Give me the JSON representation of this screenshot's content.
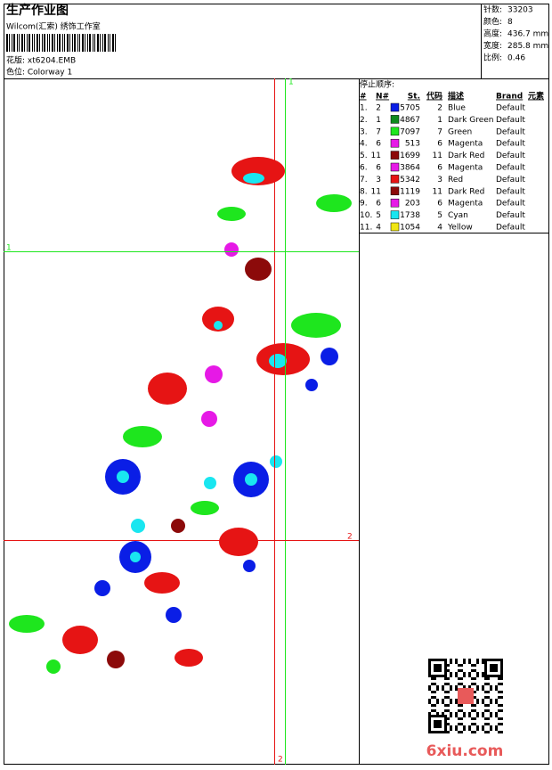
{
  "header": {
    "title": "生产作业图",
    "subtitle": "Wilcom(汇索) 绣饰工作室",
    "design": "花版: xt6204.EMB",
    "colorway": "色位: Colorway 1"
  },
  "info": [
    {
      "label": "针数:",
      "value": "33203"
    },
    {
      "label": "颜色:",
      "value": "8"
    },
    {
      "label": "高度:",
      "value": "436.7 mm"
    },
    {
      "label": "宽度:",
      "value": "285.8 mm"
    },
    {
      "label": "比例:",
      "value": "0.46"
    }
  ],
  "guides": {
    "v1": "1",
    "v2": "2",
    "h1": "1",
    "h2": "2"
  },
  "table": {
    "title": "停止顺序:",
    "columns": [
      "#",
      "N#",
      "St.",
      "代码",
      "描述",
      "Brand",
      "元素"
    ],
    "rows": [
      [
        "1.",
        "2",
        "#0a1ee6",
        "5705",
        "2",
        "Blue",
        "Default"
      ],
      [
        "2.",
        "1",
        "#0f8a1e",
        "4867",
        "1",
        "Dark Green",
        "Default"
      ],
      [
        "3.",
        "7",
        "#1ee61e",
        "7097",
        "7",
        "Green",
        "Default"
      ],
      [
        "4.",
        "6",
        "#e619e6",
        "513",
        "6",
        "Magenta",
        "Default"
      ],
      [
        "5.",
        "11",
        "#8c0a0a",
        "1699",
        "11",
        "Dark Red",
        "Default"
      ],
      [
        "6.",
        "6",
        "#e619e6",
        "3864",
        "6",
        "Magenta",
        "Default"
      ],
      [
        "7.",
        "3",
        "#e61414",
        "5342",
        "3",
        "Red",
        "Default"
      ],
      [
        "8.",
        "11",
        "#8c0a0a",
        "1119",
        "11",
        "Dark Red",
        "Default"
      ],
      [
        "9.",
        "6",
        "#e619e6",
        "203",
        "6",
        "Magenta",
        "Default"
      ],
      [
        "10.",
        "5",
        "#19e6f0",
        "1738",
        "5",
        "Cyan",
        "Default"
      ],
      [
        "11.",
        "4",
        "#f0e614",
        "1054",
        "4",
        "Yellow",
        "Default"
      ]
    ]
  },
  "watermark": "6xiu.com"
}
